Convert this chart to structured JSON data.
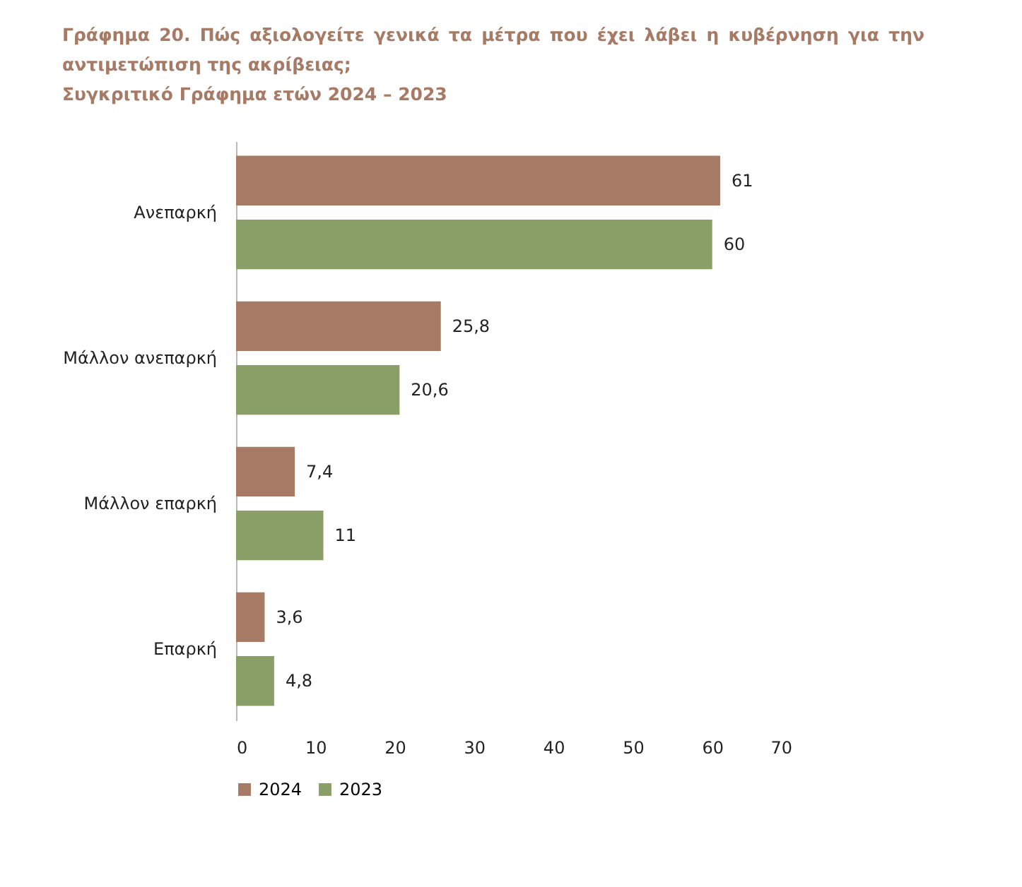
{
  "chart_data": {
    "type": "bar",
    "orientation": "horizontal",
    "title": "Γράφημα 20.  Πώς αξιολογείτε γενικά τα μέτρα που έχει λάβει η κυβέρνηση για την αντιμετώπιση της ακρίβειας;",
    "subtitle": "Συγκριτικό Γράφημα ετών 2024 – 2023",
    "categories": [
      "Ανεπαρκή",
      "Μάλλον ανεπαρκή",
      "Μάλλον επαρκή",
      "Επαρκή"
    ],
    "series": [
      {
        "name": "2024",
        "color": "#a67a64",
        "values": [
          61,
          25.8,
          7.4,
          3.6
        ],
        "value_labels": [
          "61",
          "25,8",
          "7,4",
          "3,6"
        ]
      },
      {
        "name": "2023",
        "color": "#8a9f68",
        "values": [
          60,
          20.6,
          11,
          4.8
        ],
        "value_labels": [
          "60",
          "20,6",
          "11",
          "4,8"
        ]
      }
    ],
    "xlim": [
      0,
      70
    ],
    "xticks": [
      0,
      10,
      20,
      30,
      40,
      50,
      60,
      70
    ],
    "grid": false,
    "legend": "bottom"
  }
}
